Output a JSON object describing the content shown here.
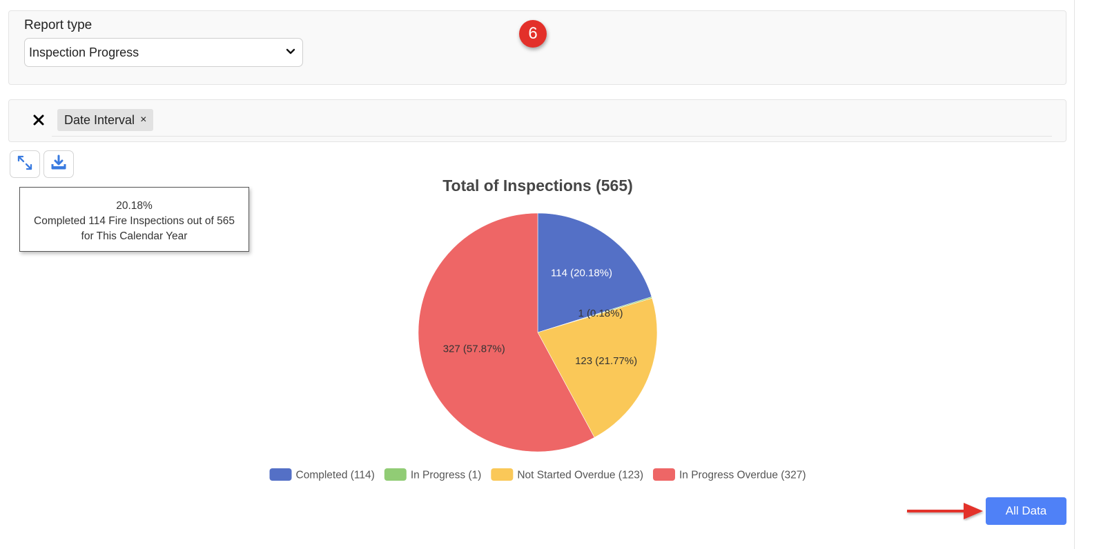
{
  "report": {
    "label": "Report type",
    "selected": "Inspection Progress"
  },
  "annotation": {
    "step_number": "6"
  },
  "filters": {
    "chip_label": "Date Interval",
    "chip_remove": "×"
  },
  "toolbar": {
    "expand_icon": "expand-arrows-icon",
    "download_icon": "download-icon"
  },
  "tooltip": {
    "line1": "20.18%",
    "line2": "Completed 114 Fire Inspections out of 565",
    "line3": "for This Calendar Year"
  },
  "chart_data": {
    "type": "pie",
    "title": "Total of Inspections (565)",
    "categories": [
      "Completed",
      "In Progress",
      "Not Started Overdue",
      "In Progress Overdue"
    ],
    "values": [
      114,
      1,
      123,
      327
    ],
    "percent_labels": [
      "114 (20.18%)",
      "1 (0.18%)",
      "123 (21.77%)",
      "327 (57.87%)"
    ],
    "legend_labels": [
      "Completed (114)",
      "In Progress (1)",
      "Not Started Overdue (123)",
      "In Progress Overdue (327)"
    ],
    "colors": [
      "#5470c6",
      "#91cc75",
      "#fac858",
      "#ee6666"
    ],
    "legend_placement": "bottom"
  },
  "actions": {
    "all_data": "All Data"
  }
}
